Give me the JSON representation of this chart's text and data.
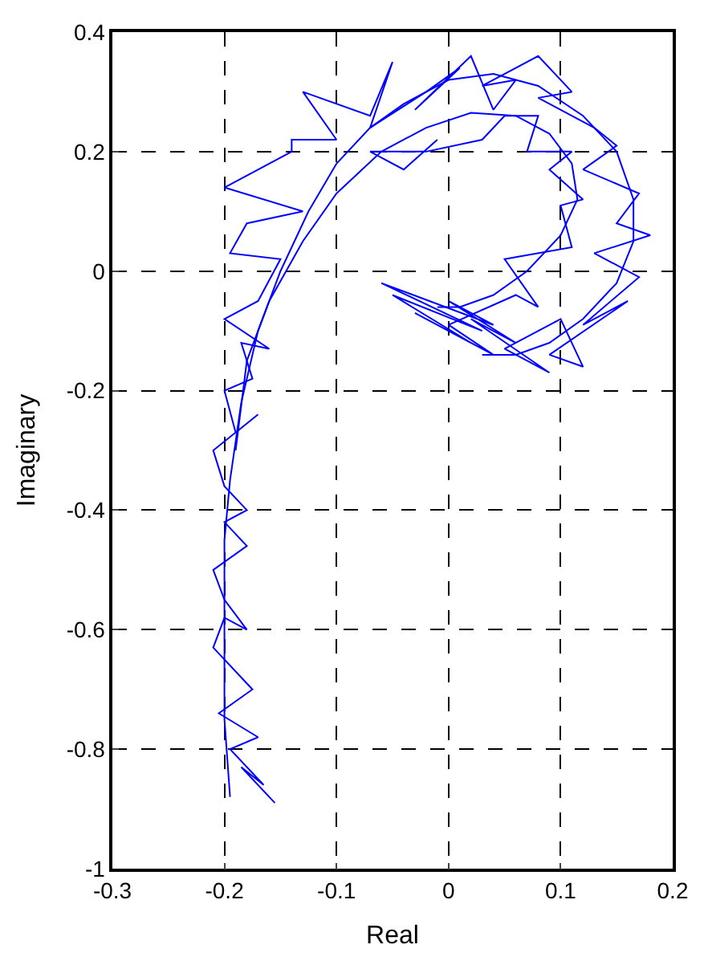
{
  "chart_data": {
    "type": "line",
    "xlabel": "Real",
    "ylabel": "Imaginary",
    "xlim": [
      -0.3,
      0.2
    ],
    "xticks": [
      -0.3,
      -0.2,
      -0.1,
      0,
      0.1,
      0.2
    ],
    "ylim": [
      -1,
      0.4
    ],
    "yticks": [
      -1,
      -0.8,
      -0.6,
      -0.4,
      -0.2,
      0,
      0.2,
      0.4
    ],
    "grid": true,
    "marker": "none",
    "line_style": "solid",
    "series": [
      {
        "color": "#0000ff",
        "x": [
          -0.195,
          -0.2,
          -0.2,
          -0.2,
          -0.195,
          -0.185,
          -0.17,
          -0.15,
          -0.125,
          -0.1,
          -0.07,
          -0.04,
          0,
          0.04,
          0.08,
          0.12,
          0.15,
          0.165,
          0.165,
          0.15,
          0.12,
          0.09,
          0.06,
          0.03
        ],
        "values": [
          -0.88,
          -0.75,
          -0.6,
          -0.45,
          -0.35,
          -0.22,
          -0.1,
          0.0,
          0.1,
          0.18,
          0.24,
          0.28,
          0.32,
          0.33,
          0.31,
          0.26,
          0.2,
          0.12,
          0.05,
          -0.02,
          -0.08,
          -0.12,
          -0.14,
          -0.14
        ]
      },
      {
        "color": "#0000ff",
        "x": [
          -0.19,
          -0.18,
          -0.16,
          -0.13,
          -0.1,
          -0.06,
          -0.02,
          0.02,
          0.06,
          0.09,
          0.11,
          0.115,
          0.1,
          0.07,
          0.04,
          0.01,
          -0.01
        ],
        "values": [
          -0.3,
          -0.15,
          -0.05,
          0.05,
          0.13,
          0.2,
          0.24,
          0.265,
          0.26,
          0.23,
          0.18,
          0.12,
          0.06,
          0.0,
          -0.04,
          -0.06,
          -0.06
        ]
      },
      {
        "color": "#0000ff",
        "x": [
          -0.155,
          -0.185,
          -0.165,
          -0.195,
          -0.17,
          -0.205,
          -0.175,
          -0.21,
          -0.2,
          -0.18,
          -0.2,
          -0.21,
          -0.18,
          -0.2,
          -0.18,
          -0.2,
          -0.21,
          -0.17,
          -0.19,
          -0.2,
          -0.175,
          -0.185,
          -0.16,
          -0.2,
          -0.17,
          -0.15,
          -0.195,
          -0.18,
          -0.13,
          -0.2,
          -0.14,
          -0.14,
          -0.1,
          -0.13,
          -0.07,
          -0.05,
          -0.07,
          -0.02,
          0.01,
          -0.03,
          0.02,
          0.04,
          0.06,
          0.03,
          0.08,
          0.11,
          0.08,
          0.13,
          0.15,
          0.12,
          0.17,
          0.15,
          0.18,
          0.13,
          0.17,
          0.12,
          0.16,
          0.09,
          0.12,
          0.1,
          0.05,
          0.09,
          0.02,
          0.06,
          0.0,
          0.04,
          -0.06,
          0.03,
          -0.05,
          0.02,
          -0.03,
          0.04,
          0.0,
          0.06,
          0.08,
          0.05,
          0.11,
          0.1,
          0.12,
          0.09,
          0.11,
          0.07,
          0.08,
          0.05,
          0.03,
          -0.02,
          -0.07,
          -0.04,
          -0.01
        ],
        "values": [
          -0.89,
          -0.83,
          -0.86,
          -0.8,
          -0.78,
          -0.74,
          -0.7,
          -0.63,
          -0.58,
          -0.6,
          -0.55,
          -0.5,
          -0.46,
          -0.42,
          -0.4,
          -0.36,
          -0.3,
          -0.24,
          -0.27,
          -0.2,
          -0.18,
          -0.12,
          -0.13,
          -0.08,
          -0.05,
          0.02,
          0.03,
          0.08,
          0.1,
          0.14,
          0.2,
          0.22,
          0.22,
          0.3,
          0.26,
          0.35,
          0.24,
          0.3,
          0.34,
          0.27,
          0.36,
          0.27,
          0.32,
          0.31,
          0.36,
          0.3,
          0.29,
          0.24,
          0.21,
          0.17,
          0.13,
          0.08,
          0.06,
          0.03,
          -0.01,
          -0.09,
          -0.05,
          -0.14,
          -0.16,
          -0.08,
          -0.13,
          -0.17,
          -0.08,
          -0.12,
          -0.05,
          -0.09,
          -0.02,
          -0.1,
          -0.04,
          -0.12,
          -0.07,
          -0.14,
          -0.09,
          -0.04,
          -0.06,
          0.02,
          0.04,
          0.11,
          0.12,
          0.17,
          0.2,
          0.2,
          0.26,
          0.26,
          0.22,
          0.2,
          0.2,
          0.17,
          0.22
        ]
      }
    ]
  }
}
